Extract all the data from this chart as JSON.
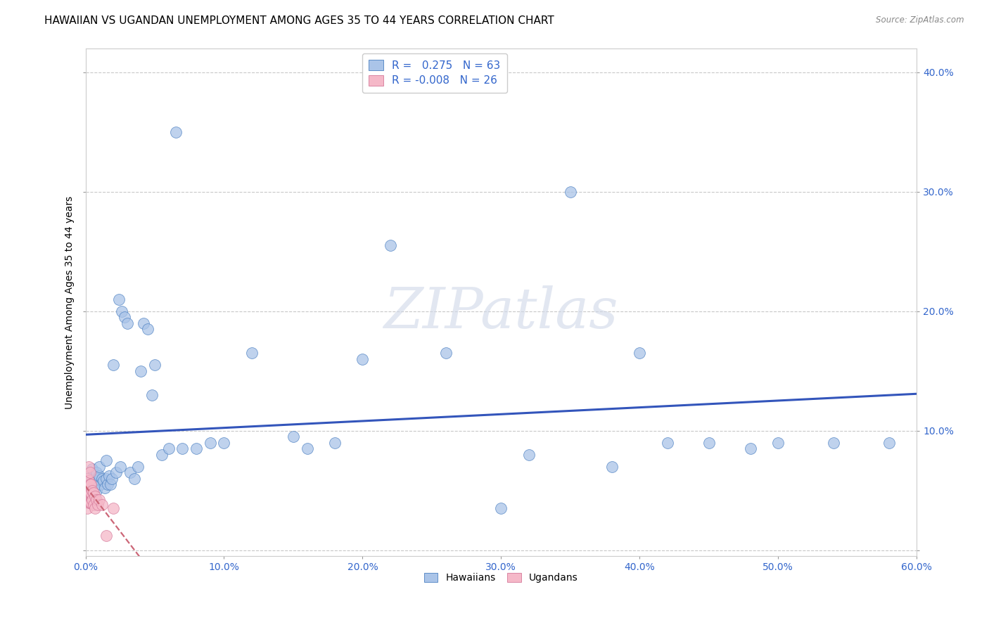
{
  "title": "HAWAIIAN VS UGANDAN UNEMPLOYMENT AMONG AGES 35 TO 44 YEARS CORRELATION CHART",
  "source": "Source: ZipAtlas.com",
  "xlabel": "",
  "ylabel": "Unemployment Among Ages 35 to 44 years",
  "xlim": [
    0.0,
    0.6
  ],
  "ylim": [
    -0.005,
    0.42
  ],
  "xticks": [
    0.0,
    0.1,
    0.2,
    0.3,
    0.4,
    0.5,
    0.6
  ],
  "yticks": [
    0.0,
    0.1,
    0.2,
    0.3,
    0.4
  ],
  "hawaiian_x": [
    0.001,
    0.002,
    0.003,
    0.004,
    0.005,
    0.005,
    0.006,
    0.007,
    0.008,
    0.008,
    0.009,
    0.01,
    0.01,
    0.011,
    0.012,
    0.013,
    0.014,
    0.015,
    0.015,
    0.016,
    0.017,
    0.018,
    0.019,
    0.02,
    0.022,
    0.024,
    0.025,
    0.026,
    0.028,
    0.03,
    0.032,
    0.035,
    0.038,
    0.04,
    0.042,
    0.045,
    0.048,
    0.05,
    0.055,
    0.06,
    0.065,
    0.07,
    0.08,
    0.09,
    0.1,
    0.12,
    0.15,
    0.16,
    0.18,
    0.2,
    0.22,
    0.26,
    0.3,
    0.32,
    0.35,
    0.38,
    0.4,
    0.42,
    0.45,
    0.48,
    0.5,
    0.54,
    0.58
  ],
  "hawaiian_y": [
    0.06,
    0.045,
    0.055,
    0.05,
    0.06,
    0.068,
    0.055,
    0.058,
    0.05,
    0.065,
    0.06,
    0.062,
    0.07,
    0.055,
    0.06,
    0.058,
    0.052,
    0.06,
    0.075,
    0.055,
    0.062,
    0.055,
    0.06,
    0.155,
    0.065,
    0.21,
    0.07,
    0.2,
    0.195,
    0.19,
    0.065,
    0.06,
    0.07,
    0.15,
    0.19,
    0.185,
    0.13,
    0.155,
    0.08,
    0.085,
    0.35,
    0.085,
    0.085,
    0.09,
    0.09,
    0.165,
    0.095,
    0.085,
    0.09,
    0.16,
    0.255,
    0.165,
    0.035,
    0.08,
    0.3,
    0.07,
    0.165,
    0.09,
    0.09,
    0.085,
    0.09,
    0.09,
    0.09
  ],
  "ugandan_x": [
    0.001,
    0.001,
    0.001,
    0.002,
    0.002,
    0.002,
    0.002,
    0.003,
    0.003,
    0.003,
    0.003,
    0.004,
    0.004,
    0.004,
    0.005,
    0.005,
    0.006,
    0.006,
    0.007,
    0.007,
    0.008,
    0.009,
    0.01,
    0.012,
    0.015,
    0.02
  ],
  "ugandan_y": [
    0.06,
    0.045,
    0.035,
    0.07,
    0.058,
    0.048,
    0.04,
    0.065,
    0.055,
    0.048,
    0.04,
    0.055,
    0.048,
    0.04,
    0.05,
    0.042,
    0.048,
    0.038,
    0.045,
    0.035,
    0.042,
    0.038,
    0.042,
    0.038,
    0.012,
    0.035
  ],
  "hawaiian_color": "#aac4e8",
  "ugandan_color": "#f5b8c8",
  "hawaiian_edge_color": "#4a7fc1",
  "ugandan_edge_color": "#d4789a",
  "hawaiian_line_color": "#3355bb",
  "ugandan_line_color": "#cc6677",
  "watermark": "ZIPatlas",
  "background_color": "#ffffff",
  "grid_color": "#c8c8c8",
  "title_fontsize": 11,
  "axis_label_fontsize": 10,
  "tick_fontsize": 10,
  "tick_color": "#3366cc",
  "source_text": "Source: ZipAtlas.com"
}
